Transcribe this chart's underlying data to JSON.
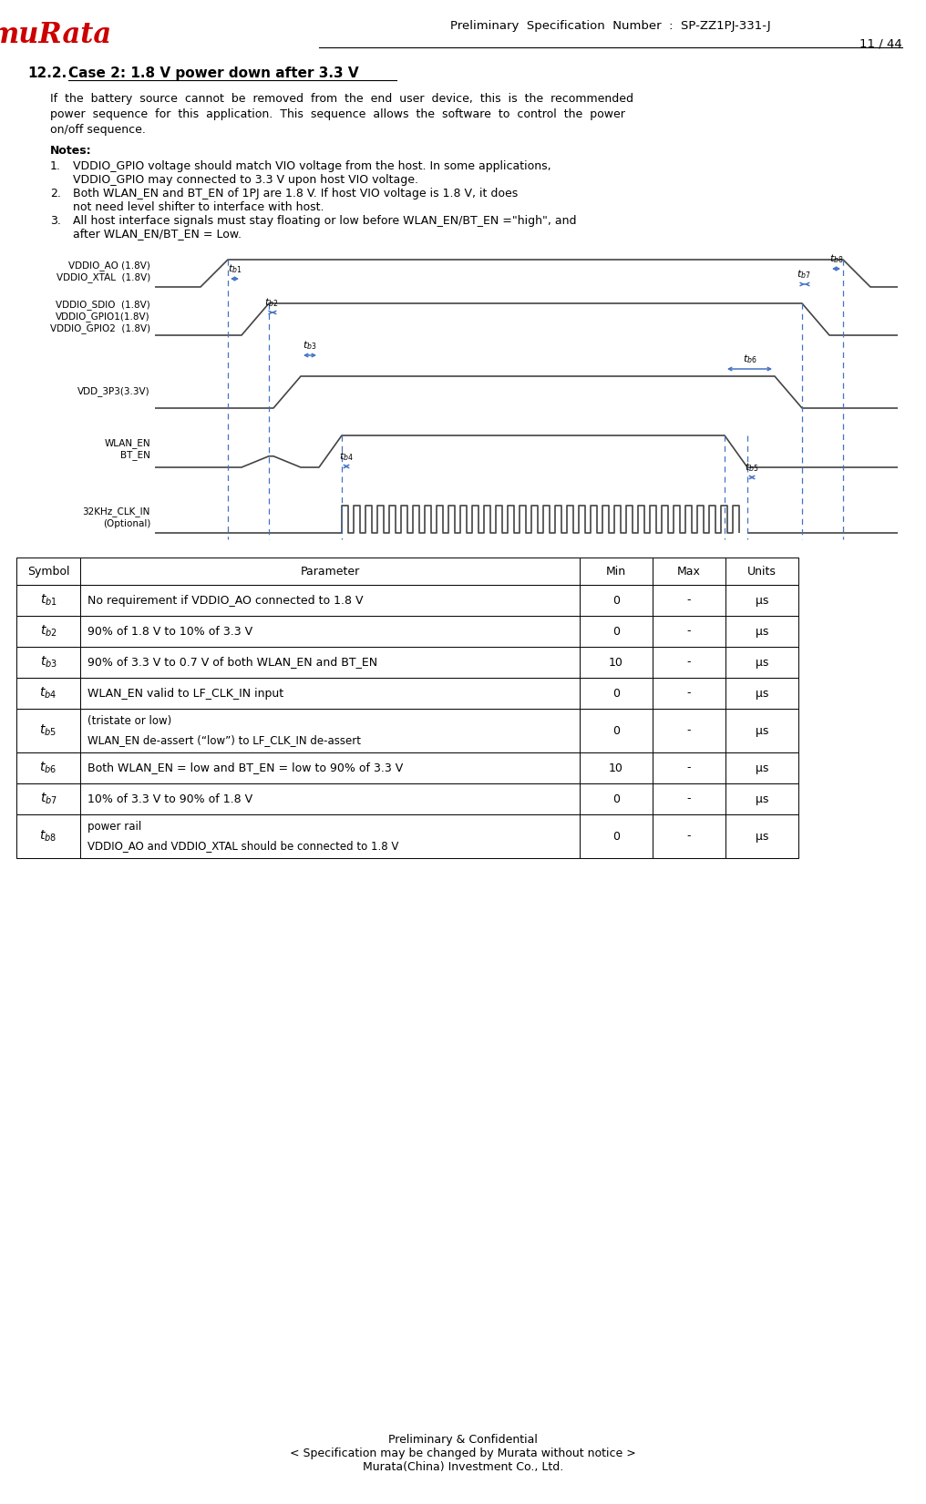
{
  "title_spec": "Preliminary  Specification  Number  :  SP-ZZ1PJ-331-J",
  "page_num": "11 / 44",
  "section": "12.2.",
  "section_title": "Case 2: 1.8 V power down after 3.3 V",
  "footer_text": "Preliminary & Confidential\n< Specification may be changed by Murata without notice >\nMurata(China) Investment Co., Ltd.",
  "table_headers": [
    "Symbol",
    "Parameter",
    "Min",
    "Max",
    "Units"
  ],
  "table_rows": [
    [
      "t_{b1}",
      "No requirement if VDDIO_AO connected to 1.8 V",
      "0",
      "-",
      "μs"
    ],
    [
      "t_{b2}",
      "90% of 1.8 V to 10% of 3.3 V",
      "0",
      "-",
      "μs"
    ],
    [
      "t_{b3}",
      "90% of 3.3 V to 0.7 V of both WLAN_EN and BT_EN",
      "10",
      "-",
      "μs"
    ],
    [
      "t_{b4}",
      "WLAN_EN valid to LF_CLK_IN input",
      "0",
      "-",
      "μs"
    ],
    [
      "t_{b5}",
      "WLAN_EN de-assert (“low”) to LF_CLK_IN de-assert\n(tristate or low)",
      "0",
      "-",
      "μs"
    ],
    [
      "t_{b6}",
      "Both WLAN_EN = low and BT_EN = low to 90% of 3.3 V",
      "10",
      "-",
      "μs"
    ],
    [
      "t_{b7}",
      "10% of 3.3 V to 90% of 1.8 V",
      "0",
      "-",
      "μs"
    ],
    [
      "t_{b8}",
      "VDDIO_AO and VDDIO_XTAL should be connected to 1.8 V\npower rail",
      "0",
      "-",
      "μs"
    ]
  ],
  "bg_color": "#ffffff",
  "line_color": "#444444",
  "blue_color": "#4472c4",
  "murata_red": "#cc0000"
}
